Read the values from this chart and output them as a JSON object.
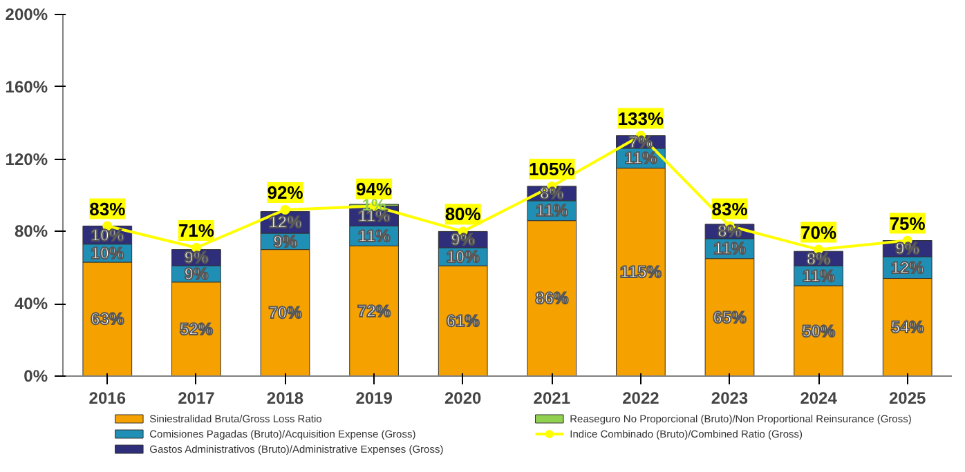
{
  "chart_data": {
    "type": "bar",
    "stacked": true,
    "categories": [
      "2016",
      "2017",
      "2018",
      "2019",
      "2020",
      "2021",
      "2022",
      "2023",
      "2024",
      "2025"
    ],
    "series": [
      {
        "name": "Siniestralidad Bruta/Gross Loss Ratio",
        "color": "#f5a100",
        "values": [
          63,
          52,
          70,
          72,
          61,
          86,
          115,
          65,
          50,
          54
        ],
        "value_labels": [
          "63%",
          "52%",
          "70%",
          "72%",
          "61%",
          "86%",
          "115%",
          "65%",
          "50%",
          "54%"
        ]
      },
      {
        "name": "Comisiones Pagadas (Bruto)/Acquisition Expense (Gross)",
        "color": "#1f8fb5",
        "values": [
          10,
          9,
          9,
          11,
          10,
          11,
          11,
          11,
          11,
          12
        ],
        "value_labels": [
          "10%",
          "9%",
          "9%",
          "11%",
          "10%",
          "11%",
          "11%",
          "11%",
          "11%",
          "12%"
        ]
      },
      {
        "name": "Gastos Administrativos (Bruto)/Administrative Expenses (Gross)",
        "color": "#2e2e7a",
        "values": [
          10,
          9,
          12,
          11,
          9,
          8,
          7,
          8,
          8,
          9
        ],
        "value_labels": [
          "10%",
          "9%",
          "12%",
          "11%",
          "9%",
          "8%",
          "7%",
          "8%",
          "8%",
          "9%"
        ]
      },
      {
        "name": "Reaseguro No Proporcional (Bruto)/Non Proportional Reinsurance (Gross)",
        "color": "#92d050",
        "values": [
          null,
          null,
          null,
          1,
          null,
          null,
          null,
          null,
          null,
          null
        ],
        "value_labels": [
          null,
          null,
          null,
          "1%",
          null,
          null,
          null,
          null,
          null,
          null
        ]
      },
      {
        "name": "Indice Combinado (Bruto)/Combined Ratio (Gross)",
        "type": "line",
        "color": "#ffff00",
        "marker": "circle",
        "line_style": "solid",
        "values": [
          83,
          71,
          92,
          94,
          80,
          105,
          133,
          83,
          70,
          75
        ],
        "value_labels": [
          "83%",
          "71%",
          "92%",
          "94%",
          "80%",
          "105%",
          "133%",
          "83%",
          "70%",
          "75%"
        ]
      }
    ],
    "ylim": [
      0,
      200
    ],
    "yticks": [
      {
        "value": 0,
        "label": "0%"
      },
      {
        "value": 40,
        "label": "40%"
      },
      {
        "value": 80,
        "label": "80%"
      },
      {
        "value": 120,
        "label": "120%"
      },
      {
        "value": 160,
        "label": "160%"
      },
      {
        "value": 200,
        "label": "200%"
      }
    ],
    "grid": false,
    "legend": "bottom"
  }
}
